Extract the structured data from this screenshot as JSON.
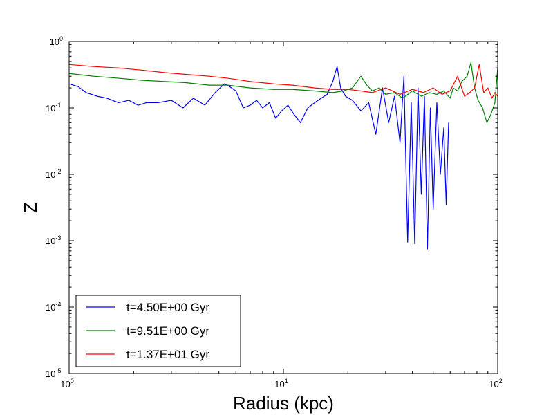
{
  "chart_data": {
    "type": "line",
    "title": "",
    "xlabel": "Radius (kpc)",
    "ylabel": "Z",
    "xscale": "log",
    "yscale": "log",
    "xlim": [
      1,
      100
    ],
    "ylim": [
      1e-05,
      1
    ],
    "grid": false,
    "legend_position": "lower-left",
    "x_ticks": [
      {
        "value": 1,
        "base": "10",
        "exp": "0"
      },
      {
        "value": 10,
        "base": "10",
        "exp": "1"
      },
      {
        "value": 100,
        "base": "10",
        "exp": "2"
      }
    ],
    "y_ticks": [
      {
        "value": 1e-05,
        "base": "10",
        "exp": "-5"
      },
      {
        "value": 0.0001,
        "base": "10",
        "exp": "-4"
      },
      {
        "value": 0.001,
        "base": "10",
        "exp": "-3"
      },
      {
        "value": 0.01,
        "base": "10",
        "exp": "-2"
      },
      {
        "value": 0.1,
        "base": "10",
        "exp": "-1"
      },
      {
        "value": 1,
        "base": "10",
        "exp": "0"
      }
    ],
    "series": [
      {
        "name": "t=4.50E+00 Gyr",
        "color": "#0000ff",
        "x": [
          1.0,
          1.1,
          1.2,
          1.35,
          1.5,
          1.7,
          1.9,
          2.1,
          2.3,
          2.6,
          3.0,
          3.4,
          3.8,
          4.3,
          4.8,
          5.3,
          5.6,
          6.0,
          6.5,
          7.0,
          7.5,
          8.0,
          8.6,
          9.2,
          9.8,
          10.5,
          11.2,
          12.0,
          13.0,
          14.0,
          15.0,
          16.0,
          17.0,
          17.8,
          18.5,
          19.5,
          21.0,
          23.0,
          25.0,
          27.0,
          29.0,
          31.0,
          33.0,
          35.0,
          36.5,
          38.0,
          39.5,
          41.0,
          42.5,
          44.0,
          45.5,
          47.0,
          48.5,
          50.0,
          52.0,
          54.0,
          56.0,
          57.5,
          59.0
        ],
        "y": [
          0.23,
          0.21,
          0.17,
          0.15,
          0.14,
          0.12,
          0.13,
          0.11,
          0.12,
          0.12,
          0.13,
          0.1,
          0.14,
          0.11,
          0.17,
          0.23,
          0.21,
          0.18,
          0.1,
          0.11,
          0.13,
          0.1,
          0.12,
          0.07,
          0.09,
          0.11,
          0.08,
          0.06,
          0.1,
          0.12,
          0.14,
          0.16,
          0.25,
          0.42,
          0.2,
          0.15,
          0.13,
          0.09,
          0.12,
          0.04,
          0.2,
          0.06,
          0.15,
          0.03,
          0.3,
          0.00095,
          0.12,
          0.0009,
          0.2,
          0.005,
          0.15,
          0.00075,
          0.1,
          0.003,
          0.12,
          0.01,
          0.05,
          0.0035,
          0.06
        ]
      },
      {
        "name": "t=9.51E+00 Gyr",
        "color": "#008000",
        "x": [
          1.0,
          1.3,
          1.7,
          2.2,
          2.8,
          3.5,
          4.5,
          5.5,
          7.0,
          9.0,
          11.0,
          14.0,
          17.0,
          19.0,
          21.0,
          23.0,
          24.5,
          26.0,
          28.0,
          30.0,
          33.0,
          36.0,
          40.0,
          44.0,
          48.0,
          52.0,
          56.0,
          60.0,
          62.0,
          65.0,
          68.0,
          72.0,
          75.0,
          78.0,
          81.0,
          85.0,
          89.0,
          93.0,
          97.0,
          100.0
        ],
        "y": [
          0.33,
          0.3,
          0.28,
          0.26,
          0.25,
          0.24,
          0.22,
          0.22,
          0.2,
          0.19,
          0.19,
          0.18,
          0.17,
          0.18,
          0.2,
          0.3,
          0.22,
          0.18,
          0.2,
          0.16,
          0.17,
          0.14,
          0.18,
          0.15,
          0.17,
          0.16,
          0.18,
          0.14,
          0.2,
          0.18,
          0.25,
          0.3,
          0.48,
          0.2,
          0.13,
          0.1,
          0.06,
          0.08,
          0.12,
          0.4
        ]
      },
      {
        "name": "t=1.37E+01 Gyr",
        "color": "#ff0000",
        "x": [
          1.0,
          1.3,
          1.7,
          2.2,
          2.8,
          3.5,
          4.5,
          5.5,
          7.0,
          9.0,
          11.0,
          14.0,
          17.0,
          20.0,
          23.0,
          26.0,
          30.0,
          35.0,
          40.0,
          45.0,
          50.0,
          55.0,
          60.0,
          65.0,
          70.0,
          74.0,
          78.0,
          82.0,
          86.0,
          90.0,
          94.0,
          97.0,
          100.0
        ],
        "y": [
          0.45,
          0.42,
          0.4,
          0.37,
          0.34,
          0.32,
          0.3,
          0.28,
          0.25,
          0.23,
          0.22,
          0.2,
          0.19,
          0.19,
          0.18,
          0.17,
          0.2,
          0.16,
          0.19,
          0.17,
          0.2,
          0.16,
          0.18,
          0.3,
          0.15,
          0.17,
          0.2,
          0.45,
          0.17,
          0.2,
          0.14,
          0.17,
          0.15
        ]
      }
    ]
  }
}
